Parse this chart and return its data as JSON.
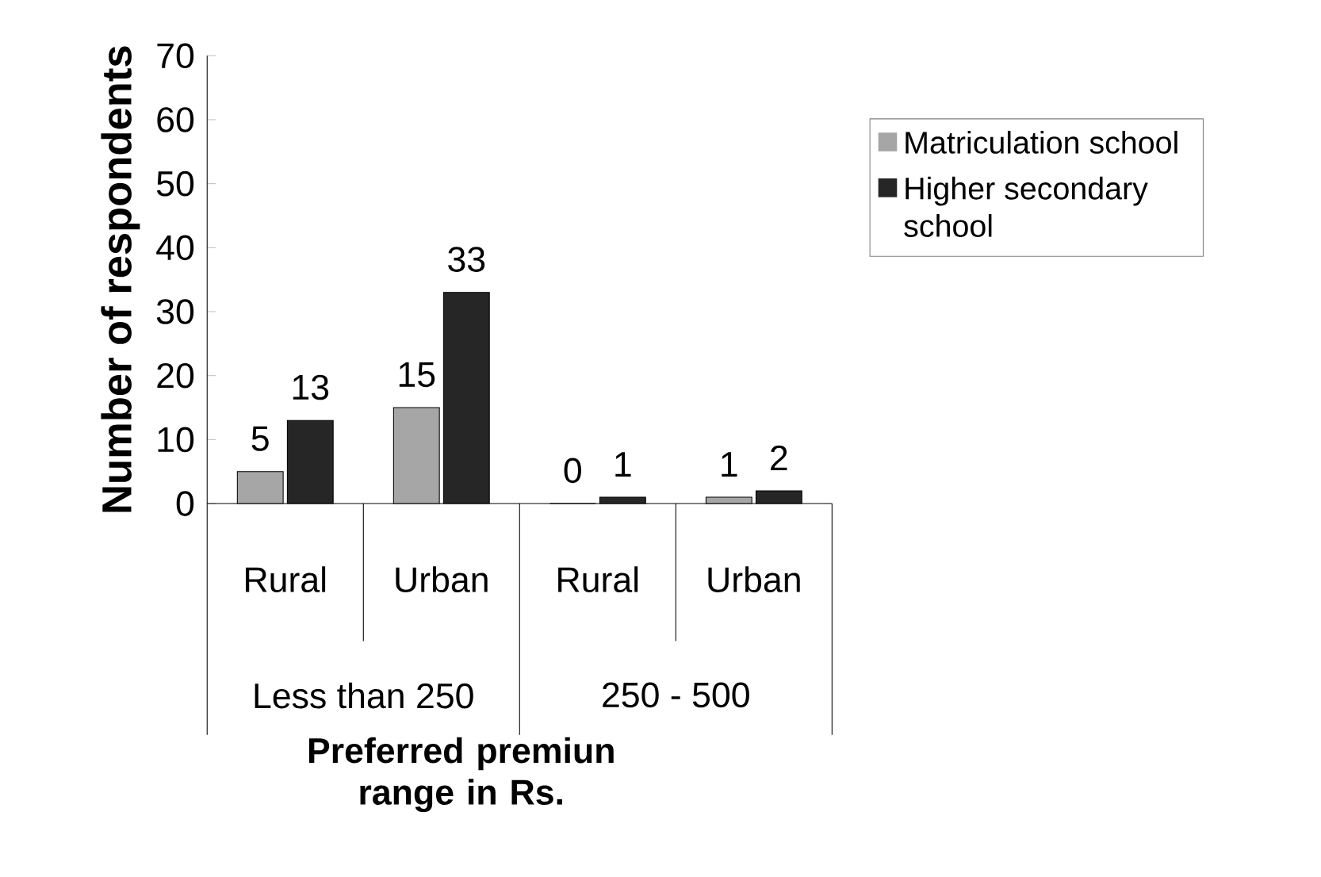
{
  "chart_data": {
    "type": "bar",
    "xlabel": "Preferred premiun range in Rs.",
    "ylabel": "Number of respondents",
    "categories": [
      "Rural",
      "Urban",
      "Rural",
      "Urban"
    ],
    "series": [
      {
        "name": "Matriculation school",
        "color": "#a6a6a6",
        "values": [
          5,
          15,
          0,
          1
        ]
      },
      {
        "name": "Higher secondary school",
        "color": "#262626",
        "values": [
          13,
          33,
          1,
          2
        ]
      }
    ],
    "annotations": [
      "Less than 250",
      "250 - 500"
    ],
    "ylim": [
      0,
      70
    ],
    "yticks": [
      0,
      10,
      20,
      30,
      40,
      50,
      60,
      70
    ],
    "data_labels": true,
    "legend": "right",
    "grid": false
  }
}
